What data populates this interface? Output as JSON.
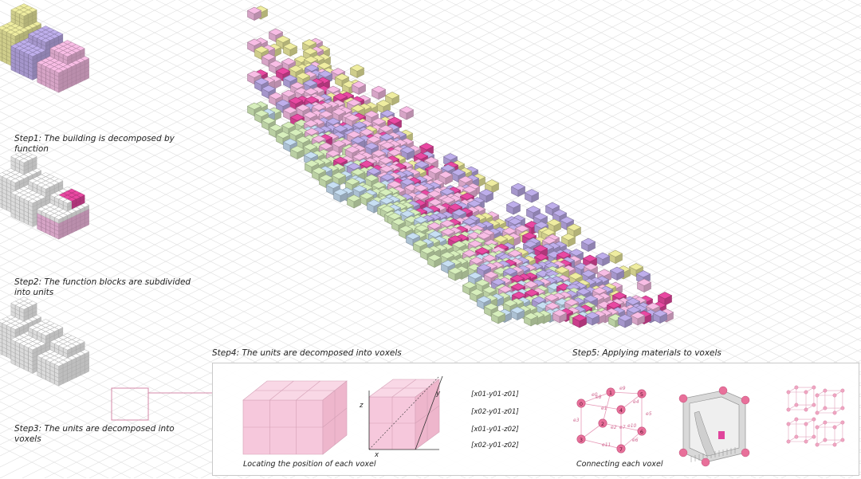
{
  "steps": {
    "step1": "Step1: The building is decomposed by\nfunction",
    "step2": "Step2: The function blocks are subdivided\ninto units",
    "step3": "Step3: The units are decomposed into\nvoxels",
    "step4": "Step4: The units are decomposed into  voxels",
    "step5": "Step5: Applying materials to voxels"
  },
  "panel": {
    "locating": "Locating the position of each voxel",
    "connecting": "Connecting each voxel",
    "axes": {
      "x": "x",
      "y": "y",
      "z": "z"
    },
    "coords": [
      "[x01-y01-z01]",
      "[x02-y01-z01]",
      "[x01-y01-z02]",
      "[x02-y01-z02]"
    ],
    "node_labels": [
      "0",
      "1",
      "2",
      "3",
      "4",
      "5",
      "6",
      "7"
    ],
    "edge_labels": [
      "e0",
      "e1",
      "e2",
      "e3",
      "e4",
      "e5",
      "e6",
      "e7",
      "e8",
      "e9",
      "e10",
      "e11"
    ]
  },
  "colors": {
    "yellow": "#e6e49a",
    "purple": "#b7a7e2",
    "pink": "#eeb6dc",
    "magenta": "#e0459c",
    "green": "#cfe6b5",
    "blue": "#bfd6ea",
    "white": "#f3f3f3",
    "grid": "#e2e2e2",
    "node": "#e8709a"
  }
}
